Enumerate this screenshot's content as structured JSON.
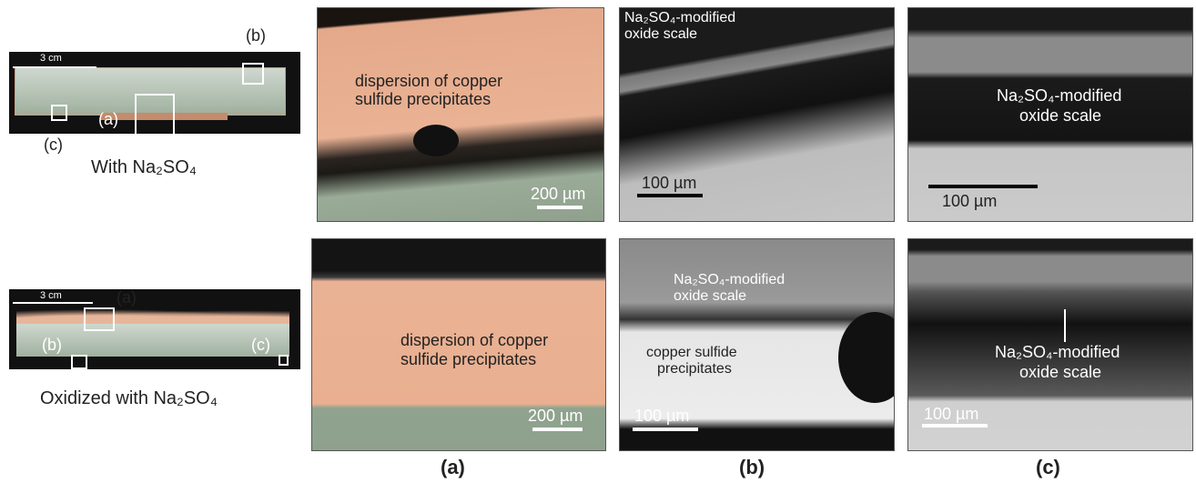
{
  "macro_photos": [
    {
      "scale_bar": "3 cm",
      "markers": [
        "(b)",
        "(a)",
        "(c)"
      ],
      "caption": "With Na₂SO₄"
    },
    {
      "scale_bar": "3 cm",
      "markers": [
        "(a)",
        "(b)",
        "(c)"
      ],
      "caption": "Oxidized with Na₂SO₄"
    }
  ],
  "micrographs": {
    "top": [
      {
        "labels": [
          "dispersion of copper",
          "sulfide precipitates"
        ],
        "scale_bar": "200 µm"
      },
      {
        "labels": [
          "Na₂SO₄-modified",
          "oxide scale"
        ],
        "scale_bar": "100 µm"
      },
      {
        "labels": [
          "Na₂SO₄-modified",
          "oxide scale"
        ],
        "scale_bar": "100 µm"
      }
    ],
    "bottom": [
      {
        "labels": [
          "dispersion of copper",
          "sulfide precipitates"
        ],
        "scale_bar": "200 µm"
      },
      {
        "labels": [
          "Na₂SO₄-modified",
          "oxide scale",
          "copper sulfide",
          "precipitates"
        ],
        "scale_bar": "100 µm"
      },
      {
        "labels": [
          "Na₂SO₄-modified",
          "oxide scale"
        ],
        "scale_bar": "100 µm"
      }
    ]
  },
  "column_labels": [
    "(a)",
    "(b)",
    "(c)"
  ]
}
